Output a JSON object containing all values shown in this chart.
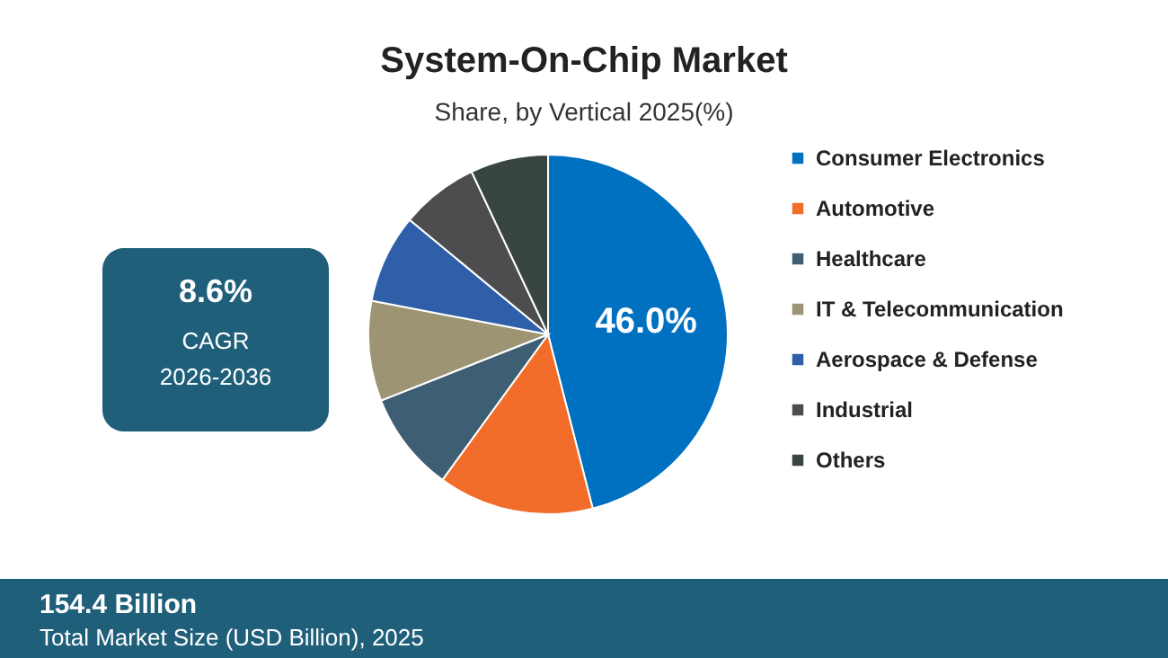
{
  "chart_data": {
    "type": "pie",
    "title": "System-On-Chip Market",
    "subtitle": "Share, by Vertical 2025(%)",
    "categories": [
      "Consumer Electronics",
      "Automotive",
      "Healthcare",
      "IT & Telecommunication",
      "Aerospace & Defense",
      "Industrial",
      "Others"
    ],
    "values": [
      46.0,
      14,
      9,
      9,
      8,
      7,
      7
    ],
    "colors": [
      "#0070c0",
      "#f26c2a",
      "#3e5f73",
      "#9c9473",
      "#2f5fa8",
      "#4d4d4f",
      "#384540"
    ],
    "value_labels": [
      "46.0%",
      null,
      null,
      null,
      null,
      null,
      null
    ],
    "legend": "right",
    "annotations": [
      "8.6%",
      "CAGR",
      "2026-2036",
      "154.4 Billion",
      "Total Market Size (USD Billion), 2025"
    ]
  }
}
